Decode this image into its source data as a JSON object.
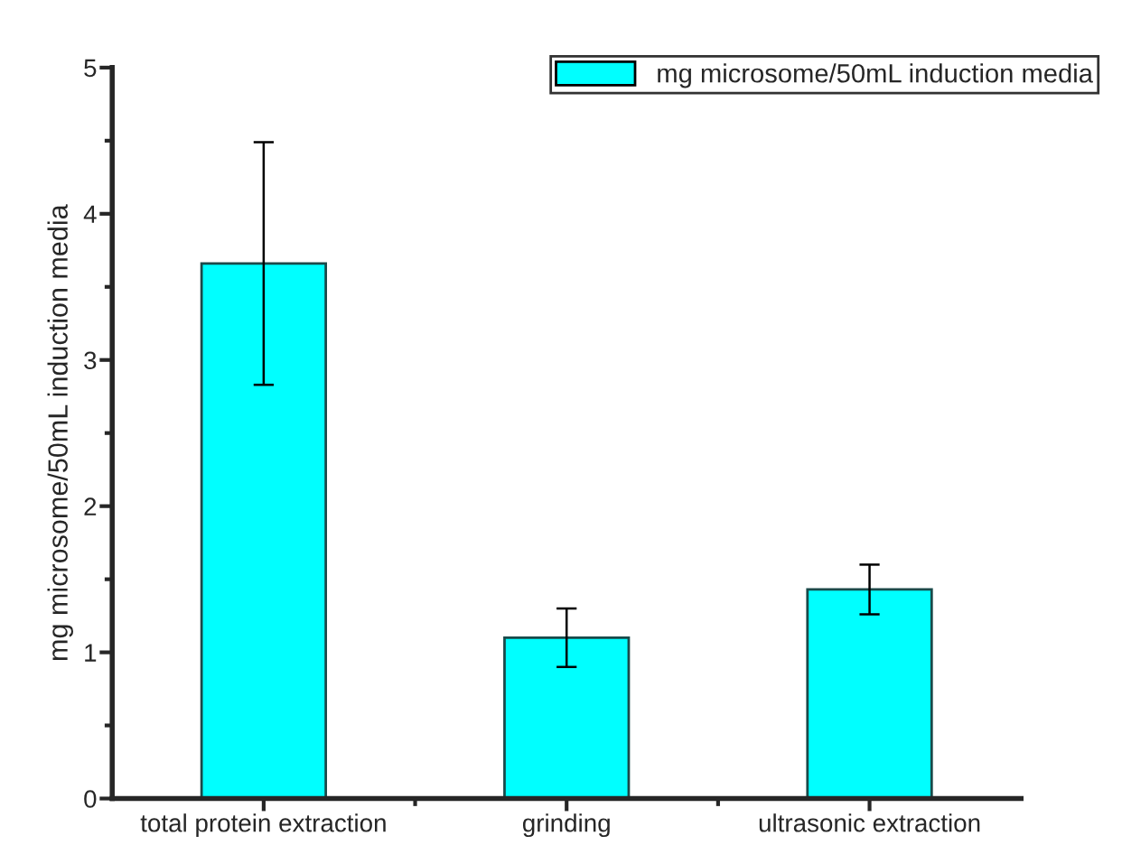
{
  "chart_data": {
    "type": "bar",
    "ylabel": "mg microsome/50mL induction media",
    "categories": [
      "total protein extraction",
      "grinding",
      "ultrasonic extraction"
    ],
    "series": [
      {
        "name": "mg microsome/50mL induction media",
        "color": "#00ffff",
        "values": [
          3.66,
          1.1,
          1.43
        ],
        "errors": [
          0.83,
          0.2,
          0.17
        ]
      }
    ],
    "ylim": [
      0,
      5
    ],
    "yticks": [
      0,
      1,
      2,
      3,
      4,
      5
    ],
    "grid": false,
    "legend": "top right"
  }
}
